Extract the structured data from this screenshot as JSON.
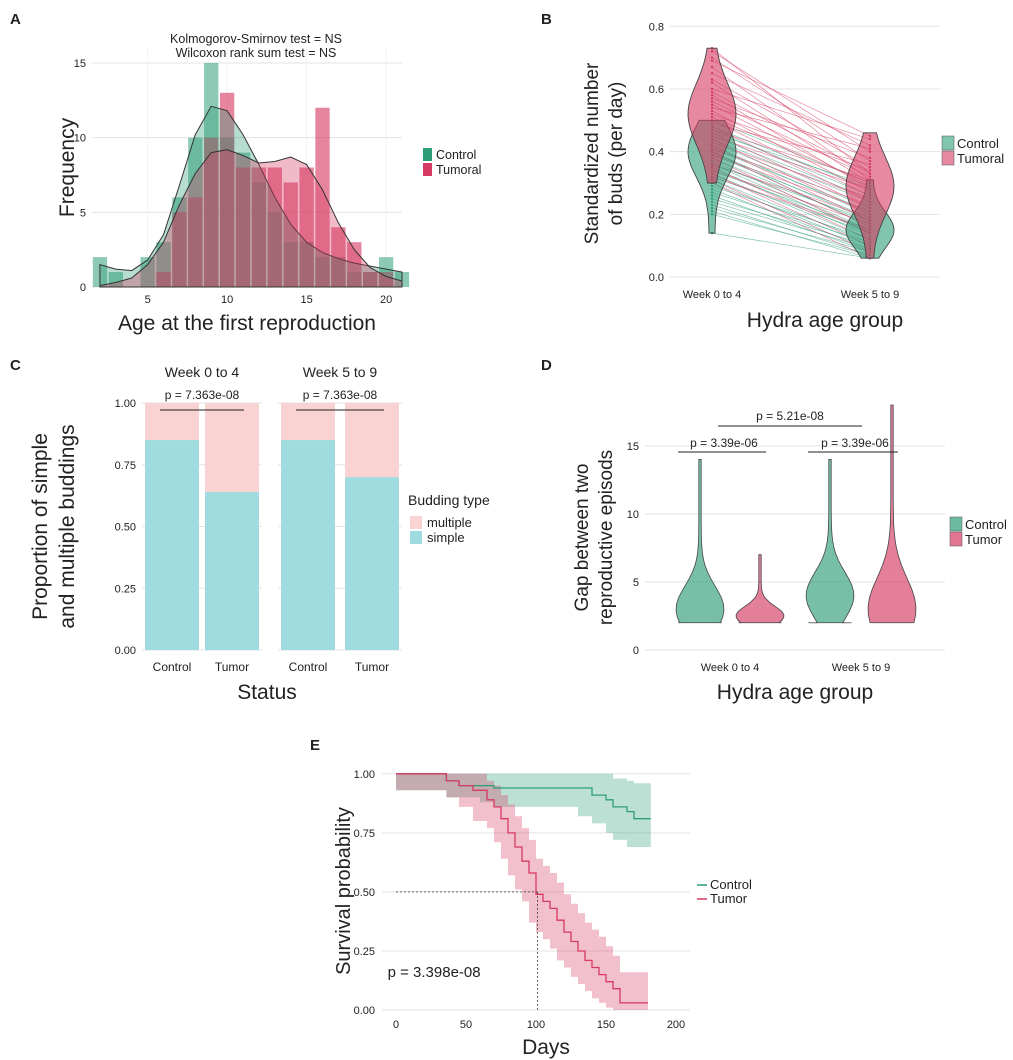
{
  "chart_data": [
    {
      "panel": "A",
      "type": "bar",
      "title": "Kolmogorov-Smirnov test = NS",
      "subtitle": "Wilcoxon rank sum test = NS",
      "xlabel": "Age at the first reproduction",
      "ylabel": "Frequency",
      "xlim": [
        1.5,
        21
      ],
      "ylim": [
        0,
        16
      ],
      "xticks": [
        "5",
        "10",
        "15",
        "20"
      ],
      "yticks": [
        "0",
        "5",
        "10",
        "15"
      ],
      "legend": "right",
      "categories": [
        2,
        3,
        4,
        5,
        6,
        7,
        8,
        9,
        10,
        11,
        12,
        13,
        14,
        15,
        16,
        17,
        18,
        19,
        20,
        21
      ],
      "series": [
        {
          "name": "Control",
          "color": "#2e9e78",
          "values": [
            2,
            1,
            0,
            2,
            3,
            6,
            10,
            15,
            10,
            9,
            7,
            5,
            3,
            3,
            2,
            2,
            1,
            1,
            2,
            1
          ]
        },
        {
          "name": "Tumoral",
          "color": "#d63a62",
          "values": [
            0,
            0,
            0,
            0,
            1,
            5,
            6,
            10,
            13,
            8,
            8,
            8,
            7,
            8,
            12,
            4,
            3,
            1,
            1,
            0
          ]
        }
      ],
      "density": [
        {
          "name": "Control",
          "points": [
            [
              2,
              1.5
            ],
            [
              3,
              1.2
            ],
            [
              4,
              1.1
            ],
            [
              5,
              1.8
            ],
            [
              6,
              3.5
            ],
            [
              7,
              6.8
            ],
            [
              8,
              10.2
            ],
            [
              9,
              12.1
            ],
            [
              10,
              11.8
            ],
            [
              11,
              10.2
            ],
            [
              12,
              8.2
            ],
            [
              13,
              6.0
            ],
            [
              14,
              4.2
            ],
            [
              15,
              3.0
            ],
            [
              16,
              2.3
            ],
            [
              17,
              1.9
            ],
            [
              18,
              1.6
            ],
            [
              19,
              1.4
            ],
            [
              20,
              1.2
            ],
            [
              21,
              1.0
            ]
          ]
        },
        {
          "name": "Tumoral",
          "points": [
            [
              2,
              0.1
            ],
            [
              3,
              0.3
            ],
            [
              4,
              0.6
            ],
            [
              5,
              1.5
            ],
            [
              6,
              3.0
            ],
            [
              7,
              5.5
            ],
            [
              8,
              7.6
            ],
            [
              9,
              9.0
            ],
            [
              10,
              9.2
            ],
            [
              11,
              8.8
            ],
            [
              12,
              8.3
            ],
            [
              13,
              8.4
            ],
            [
              14,
              8.7
            ],
            [
              15,
              8.2
            ],
            [
              16,
              6.5
            ],
            [
              17,
              4.3
            ],
            [
              18,
              2.5
            ],
            [
              19,
              1.3
            ],
            [
              20,
              0.7
            ],
            [
              21,
              0.4
            ]
          ]
        }
      ]
    },
    {
      "panel": "B",
      "type": "violin",
      "xlabel": "Hydra age group",
      "ylabel": "Standardized number of buds (per day)",
      "categories": [
        "Week 0 to 4",
        "Week 5 to 9"
      ],
      "ylim": [
        0,
        0.82
      ],
      "yticks": [
        "0.0",
        "0.2",
        "0.4",
        "0.6",
        "0.8"
      ],
      "legend": "right",
      "series": [
        {
          "name": "Control",
          "color": "#2e9e78",
          "distributions": [
            {
              "category": "Week 0 to 4",
              "min": 0.14,
              "max": 0.5,
              "mode": 0.4
            },
            {
              "category": "Week 5 to 9",
              "min": 0.06,
              "max": 0.31,
              "mode": 0.15
            }
          ]
        },
        {
          "name": "Tumoral",
          "color": "#d63a62",
          "distributions": [
            {
              "category": "Week 0 to 4",
              "min": 0.3,
              "max": 0.73,
              "mode": 0.52
            },
            {
              "category": "Week 5 to 9",
              "min": 0.06,
              "max": 0.46,
              "mode": 0.29
            }
          ]
        }
      ],
      "paired_lines": {
        "Control": [
          [
            0.5,
            0.3
          ],
          [
            0.48,
            0.28
          ],
          [
            0.47,
            0.26
          ],
          [
            0.46,
            0.29
          ],
          [
            0.45,
            0.25
          ],
          [
            0.44,
            0.24
          ],
          [
            0.43,
            0.22
          ],
          [
            0.42,
            0.2
          ],
          [
            0.41,
            0.21
          ],
          [
            0.4,
            0.18
          ],
          [
            0.4,
            0.16
          ],
          [
            0.39,
            0.19
          ],
          [
            0.38,
            0.17
          ],
          [
            0.37,
            0.15
          ],
          [
            0.36,
            0.14
          ],
          [
            0.36,
            0.18
          ],
          [
            0.35,
            0.13
          ],
          [
            0.34,
            0.15
          ],
          [
            0.33,
            0.12
          ],
          [
            0.32,
            0.14
          ],
          [
            0.31,
            0.11
          ],
          [
            0.3,
            0.1
          ],
          [
            0.29,
            0.12
          ],
          [
            0.28,
            0.09
          ],
          [
            0.27,
            0.11
          ],
          [
            0.26,
            0.08
          ],
          [
            0.25,
            0.1
          ],
          [
            0.24,
            0.09
          ],
          [
            0.23,
            0.07
          ],
          [
            0.22,
            0.08
          ],
          [
            0.21,
            0.06
          ],
          [
            0.2,
            0.07
          ],
          [
            0.14,
            0.06
          ]
        ],
        "Tumoral": [
          [
            0.73,
            0.33
          ],
          [
            0.72,
            0.4
          ],
          [
            0.7,
            0.37
          ],
          [
            0.69,
            0.45
          ],
          [
            0.67,
            0.31
          ],
          [
            0.65,
            0.42
          ],
          [
            0.63,
            0.35
          ],
          [
            0.62,
            0.3
          ],
          [
            0.6,
            0.44
          ],
          [
            0.59,
            0.33
          ],
          [
            0.58,
            0.28
          ],
          [
            0.57,
            0.38
          ],
          [
            0.56,
            0.32
          ],
          [
            0.55,
            0.29
          ],
          [
            0.54,
            0.41
          ],
          [
            0.53,
            0.27
          ],
          [
            0.52,
            0.34
          ],
          [
            0.51,
            0.3
          ],
          [
            0.5,
            0.26
          ],
          [
            0.49,
            0.36
          ],
          [
            0.48,
            0.24
          ],
          [
            0.47,
            0.31
          ],
          [
            0.46,
            0.22
          ],
          [
            0.45,
            0.28
          ],
          [
            0.44,
            0.2
          ],
          [
            0.43,
            0.25
          ],
          [
            0.42,
            0.18
          ],
          [
            0.41,
            0.23
          ],
          [
            0.4,
            0.16
          ],
          [
            0.39,
            0.21
          ],
          [
            0.38,
            0.14
          ],
          [
            0.36,
            0.19
          ],
          [
            0.35,
            0.12
          ],
          [
            0.34,
            0.17
          ],
          [
            0.33,
            0.1
          ],
          [
            0.32,
            0.15
          ],
          [
            0.31,
            0.08
          ],
          [
            0.3,
            0.06
          ]
        ]
      }
    },
    {
      "panel": "C",
      "type": "bar",
      "stacked": true,
      "xlabel": "Status",
      "ylabel": "Proportion of simple and multiple buddings",
      "facets": [
        "Week 0 to 4",
        "Week 5 to 9"
      ],
      "categories": [
        "Control",
        "Tumor"
      ],
      "ylim": [
        0,
        1
      ],
      "yticks": [
        "0.00",
        "0.25",
        "0.50",
        "0.75",
        "1.00"
      ],
      "legend": "right",
      "legend_title": "Budding type",
      "series": [
        {
          "name": "multiple",
          "color": "#f9d2d2",
          "values": [
            [
              0.15,
              0.36
            ],
            [
              0.15,
              0.3
            ]
          ]
        },
        {
          "name": "simple",
          "color": "#a0dcdf",
          "values": [
            [
              0.85,
              0.64
            ],
            [
              0.85,
              0.7
            ]
          ]
        }
      ],
      "annotations": [
        "p = 7.363e-08",
        "p = 7.363e-08"
      ]
    },
    {
      "panel": "D",
      "type": "violin",
      "xlabel": "Hydra age group",
      "ylabel": "Gap between two reproductive episods",
      "categories": [
        "Week 0 to 4",
        "Week 5 to 9"
      ],
      "ylim": [
        0,
        18
      ],
      "yticks": [
        "0",
        "5",
        "10",
        "15"
      ],
      "legend": "right",
      "series": [
        {
          "name": "Control",
          "color": "#2e9e78",
          "distributions": [
            {
              "category": "Week 0 to 4",
              "min": 2,
              "max": 14,
              "mode": 3
            },
            {
              "category": "Week 5 to 9",
              "min": 2,
              "max": 14,
              "mode": 4
            }
          ]
        },
        {
          "name": "Tumor",
          "color": "#d63a62",
          "distributions": [
            {
              "category": "Week 0 to 4",
              "min": 2,
              "max": 7,
              "mode": 2.5
            },
            {
              "category": "Week 5 to 9",
              "min": 2,
              "max": 18,
              "mode": 3
            }
          ]
        }
      ],
      "annotations": [
        "p = 3.39e-06",
        "p = 3.39e-06",
        "p = 5.21e-08"
      ]
    },
    {
      "panel": "E",
      "type": "line",
      "xlabel": "Days",
      "ylabel": "Survival probability",
      "xlim": [
        -10,
        210
      ],
      "ylim": [
        0,
        1.05
      ],
      "xticks": [
        "0",
        "50",
        "100",
        "150",
        "200"
      ],
      "yticks": [
        "0.00",
        "0.25",
        "0.50",
        "0.75",
        "1.00"
      ],
      "legend": "right",
      "annotation": "p = 3.398e-08",
      "median_survival_days": 101,
      "series": [
        {
          "name": "Control",
          "color": "#2e9e78",
          "x": [
            0,
            36,
            45,
            60,
            70,
            130,
            140,
            150,
            155,
            165,
            170,
            182
          ],
          "y": [
            1.0,
            0.97,
            0.95,
            0.95,
            0.94,
            0.94,
            0.91,
            0.89,
            0.86,
            0.84,
            0.81,
            0.81
          ],
          "upper": [
            1.0,
            1.0,
            1.0,
            1.0,
            1.0,
            1.0,
            1.0,
            1.0,
            0.98,
            0.97,
            0.96,
            0.96
          ],
          "lower": [
            1.0,
            0.93,
            0.9,
            0.9,
            0.88,
            0.86,
            0.82,
            0.79,
            0.75,
            0.72,
            0.69,
            0.69
          ]
        },
        {
          "name": "Tumor",
          "color": "#d63a62",
          "x": [
            0,
            36,
            45,
            55,
            65,
            70,
            75,
            80,
            85,
            90,
            95,
            100,
            105,
            110,
            115,
            120,
            125,
            130,
            135,
            140,
            145,
            150,
            155,
            160,
            180
          ],
          "y": [
            1.0,
            0.97,
            0.95,
            0.93,
            0.89,
            0.86,
            0.81,
            0.75,
            0.69,
            0.63,
            0.58,
            0.49,
            0.46,
            0.43,
            0.38,
            0.33,
            0.29,
            0.25,
            0.21,
            0.18,
            0.15,
            0.12,
            0.09,
            0.03,
            0.03
          ],
          "upper": [
            1.0,
            1.0,
            1.0,
            1.0,
            0.97,
            0.95,
            0.91,
            0.87,
            0.82,
            0.77,
            0.72,
            0.64,
            0.61,
            0.58,
            0.54,
            0.49,
            0.45,
            0.41,
            0.37,
            0.34,
            0.31,
            0.27,
            0.23,
            0.16,
            0.16
          ],
          "lower": [
            1.0,
            0.93,
            0.9,
            0.86,
            0.8,
            0.77,
            0.71,
            0.64,
            0.57,
            0.51,
            0.46,
            0.37,
            0.33,
            0.3,
            0.26,
            0.21,
            0.18,
            0.14,
            0.11,
            0.08,
            0.05,
            0.03,
            0.01,
            0.0,
            0.0
          ]
        }
      ]
    }
  ]
}
